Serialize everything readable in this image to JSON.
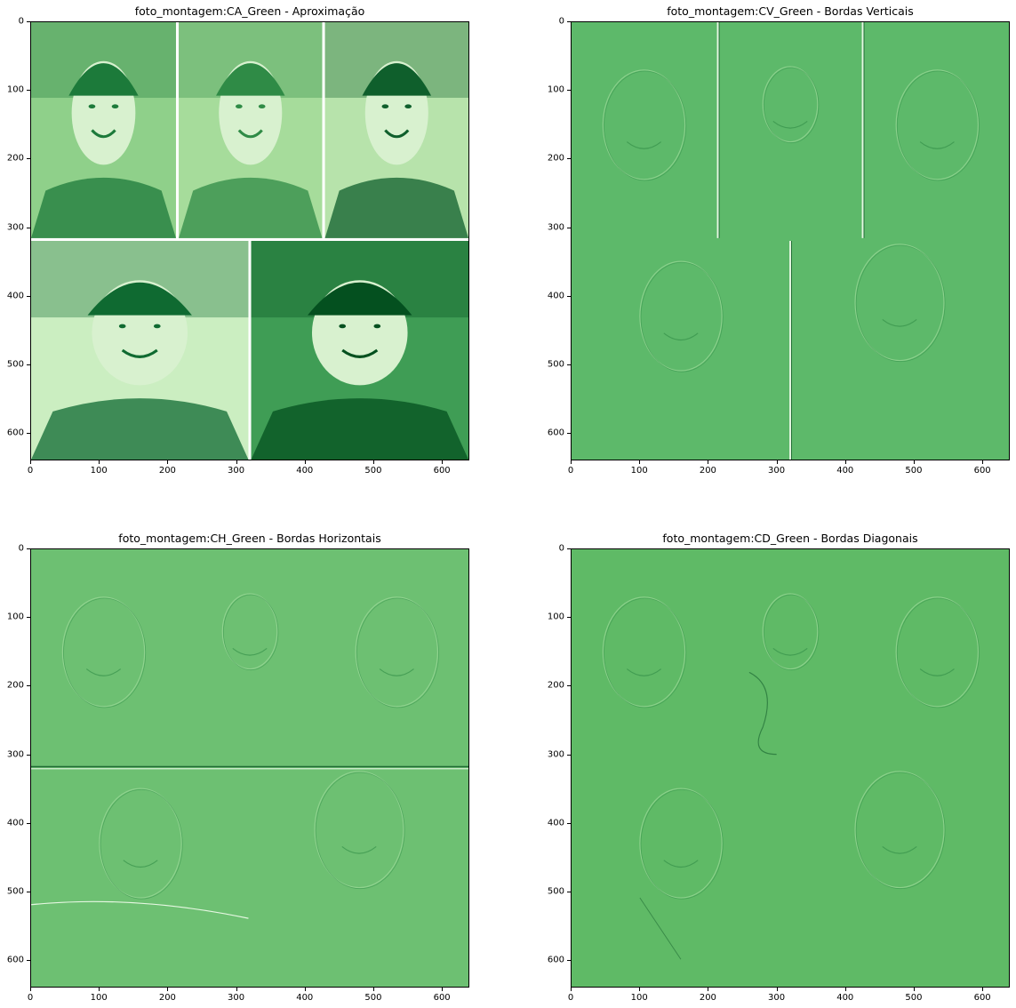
{
  "figure": {
    "panels": [
      {
        "title": "foto_montagem:CA_Green - Aproximação",
        "kind": "approx",
        "xticks": [
          "0",
          "100",
          "200",
          "300",
          "400",
          "500",
          "600"
        ],
        "yticks": [
          "0",
          "100",
          "200",
          "300",
          "400",
          "500",
          "600"
        ],
        "xrange": [
          0,
          640
        ],
        "yrange": [
          0,
          640
        ]
      },
      {
        "title": "foto_montagem:CV_Green - Bordas Verticais",
        "kind": "vertical",
        "xticks": [
          "0",
          "100",
          "200",
          "300",
          "400",
          "500",
          "600"
        ],
        "yticks": [
          "0",
          "100",
          "200",
          "300",
          "400",
          "500",
          "600"
        ],
        "xrange": [
          0,
          640
        ],
        "yrange": [
          0,
          640
        ]
      },
      {
        "title": "foto_montagem:CH_Green - Bordas Horizontais",
        "kind": "horizontal",
        "xticks": [
          "0",
          "100",
          "200",
          "300",
          "400",
          "500",
          "600"
        ],
        "yticks": [
          "0",
          "100",
          "200",
          "300",
          "400",
          "500",
          "600"
        ],
        "xrange": [
          0,
          640
        ],
        "yrange": [
          0,
          640
        ]
      },
      {
        "title": "foto_montagem:CD_Green - Bordas Diagonais",
        "kind": "diagonal",
        "xticks": [
          "0",
          "100",
          "200",
          "300",
          "400",
          "500",
          "600"
        ],
        "yticks": [
          "0",
          "100",
          "200",
          "300",
          "400",
          "500",
          "600"
        ],
        "xrange": [
          0,
          640
        ],
        "yrange": [
          0,
          640
        ]
      }
    ],
    "colors": {
      "approx_light": "#e8f6e3",
      "approx_mid": "#74c476",
      "approx_dark": "#00622a",
      "edge_bg_v": "#5db96a",
      "edge_bg_h": "#6dc072",
      "edge_bg_d": "#5fba66"
    }
  }
}
